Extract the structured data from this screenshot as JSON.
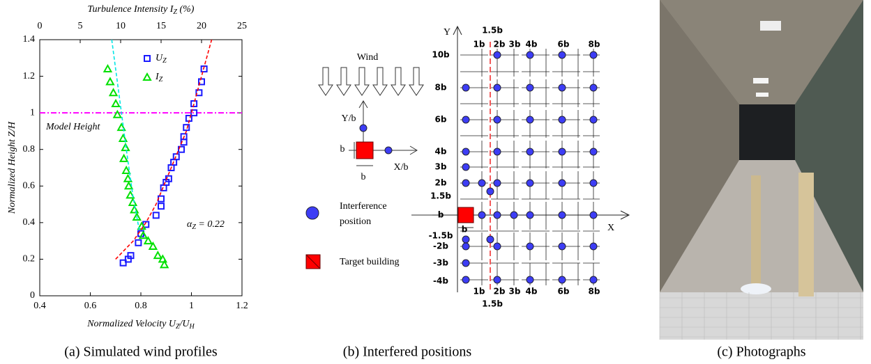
{
  "chart_data": {
    "type": "scatter",
    "x2_label": [
      "Turbulence Intensity I",
      "Z",
      " (%)"
    ],
    "x_label": [
      "Normalized Velocity U",
      "Z",
      "/U",
      "H"
    ],
    "y_label": "Normalized Height Z/H",
    "model_height_label": "Model Height",
    "model_height": 1,
    "model_height_color": "#ff00ff",
    "alpha_label": [
      "α",
      "Z",
      " = 0.22"
    ],
    "xlim": [
      0.4,
      1.2
    ],
    "xticks": [
      0.4,
      0.6,
      0.8,
      1,
      1.2
    ],
    "x2lim": [
      0,
      25
    ],
    "x2ticks": [
      0,
      5,
      10,
      15,
      20,
      25
    ],
    "ylim": [
      0,
      1.4
    ],
    "yticks": [
      0,
      0.2,
      0.4,
      0.6,
      0.8,
      1,
      1.2,
      1.4
    ],
    "series": [
      {
        "name": [
          "U",
          "Z"
        ],
        "color": "#1a1aff",
        "marker": "square",
        "x": [
          1.05,
          1.04,
          1.03,
          1.01,
          1.01,
          0.99,
          0.98,
          0.97,
          0.97,
          0.96,
          0.94,
          0.93,
          0.92,
          0.91,
          0.9,
          0.89,
          0.88,
          0.88,
          0.86,
          0.82,
          0.8,
          0.79,
          0.76,
          0.75,
          0.73
        ],
        "y": [
          1.24,
          1.17,
          1.11,
          1.05,
          1.0,
          0.97,
          0.92,
          0.87,
          0.84,
          0.8,
          0.76,
          0.73,
          0.7,
          0.64,
          0.62,
          0.59,
          0.53,
          0.49,
          0.44,
          0.39,
          0.34,
          0.29,
          0.22,
          0.2,
          0.18
        ]
      },
      {
        "name": [
          "I",
          "Z"
        ],
        "color": "#00e000",
        "marker": "triangle",
        "axis": "x2",
        "x": [
          8.4,
          8.7,
          9.1,
          9.4,
          9.6,
          10.1,
          10.3,
          10.6,
          10.4,
          10.7,
          10.9,
          11.0,
          11.2,
          11.5,
          11.7,
          12.0,
          12.6,
          12.8,
          13.4,
          14.0,
          14.6,
          15.2,
          15.4
        ],
        "y": [
          1.24,
          1.17,
          1.11,
          1.05,
          0.99,
          0.92,
          0.86,
          0.81,
          0.75,
          0.685,
          0.64,
          0.6,
          0.55,
          0.51,
          0.47,
          0.43,
          0.38,
          0.33,
          0.3,
          0.27,
          0.22,
          0.2,
          0.17
        ]
      },
      {
        "color": "#ff0000",
        "marker": "dashed-line",
        "x": [
          0.7,
          0.77,
          0.82,
          0.86,
          0.89,
          0.92,
          0.95,
          0.98,
          1.0,
          1.02,
          1.04,
          1.06,
          1.08
        ],
        "y": [
          0.2,
          0.3,
          0.4,
          0.5,
          0.6,
          0.7,
          0.8,
          0.9,
          1.0,
          1.1,
          1.2,
          1.3,
          1.4
        ]
      },
      {
        "color": "#00e5e5",
        "marker": "dashed-line",
        "axis": "x2",
        "x": [
          8.9,
          9.5,
          10.1,
          10.7,
          11.5,
          12.3
        ],
        "y": [
          1.4,
          1.2,
          1.0,
          0.8,
          0.55,
          0.36
        ]
      }
    ]
  },
  "diagram": {
    "wind": "Wind",
    "y_over_b": "Y/b",
    "x_over_b": "X/b",
    "b_left": "b",
    "b_below": "b",
    "legend_interference": [
      "Interference",
      "position"
    ],
    "legend_target": "Target building",
    "axis_y": "Y",
    "axis_x": "X",
    "top_upper": "1.5b",
    "top_lower": [
      "1b",
      "2b",
      "3b",
      "4b",
      "6b",
      "8b"
    ],
    "bottom_upper": [
      "1b",
      "2b",
      "3b",
      "4b",
      "6b",
      "8b"
    ],
    "bottom_lower": "1.5b",
    "row_labels": [
      "10b",
      "8b",
      "6b",
      "4b",
      "3b",
      "2b",
      "1.5b",
      "b",
      "-1.5b",
      "-2b",
      "-3b",
      "-4b"
    ],
    "target_b_below": "b"
  },
  "captions": [
    "(a)   Simulated wind profiles",
    "(b)   Interfered positions",
    "(c)   Photographs"
  ]
}
